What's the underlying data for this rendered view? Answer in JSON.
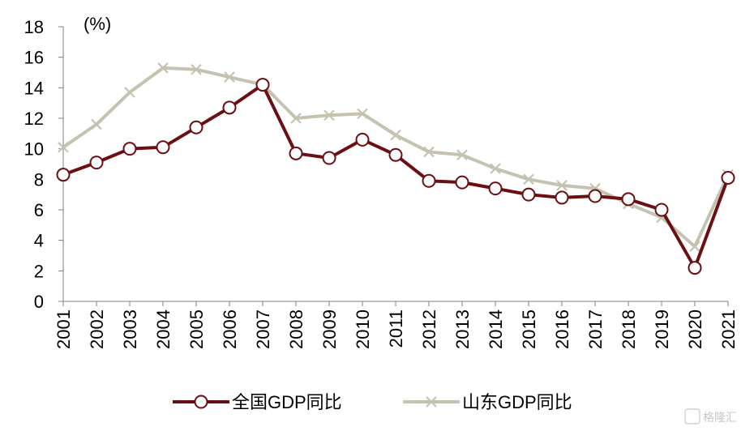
{
  "chart_data": {
    "type": "line",
    "title": "",
    "xlabel": "",
    "ylabel": "",
    "y_unit": "(%)",
    "ylim": [
      0,
      18
    ],
    "yticks": [
      0,
      2,
      4,
      6,
      8,
      10,
      12,
      14,
      16,
      18
    ],
    "grid": false,
    "legend_position": "bottom",
    "categories": [
      "2001",
      "2002",
      "2003",
      "2004",
      "2005",
      "2006",
      "2007",
      "2008",
      "2009",
      "2010",
      "2011",
      "2012",
      "2013",
      "2014",
      "2015",
      "2016",
      "2017",
      "2018",
      "2019",
      "2020",
      "2021"
    ],
    "series": [
      {
        "name": "全国GDP同比",
        "color": "#6b0f12",
        "marker": "open-circle",
        "values": [
          8.3,
          9.1,
          10.0,
          10.1,
          11.4,
          12.7,
          14.2,
          9.7,
          9.4,
          10.6,
          9.6,
          7.9,
          7.8,
          7.4,
          7.0,
          6.8,
          6.9,
          6.7,
          6.0,
          2.2,
          8.1
        ]
      },
      {
        "name": "山东GDP同比",
        "color": "#c5c2b1",
        "marker": "x",
        "values": [
          10.1,
          11.6,
          13.7,
          15.3,
          15.2,
          14.7,
          14.2,
          12.0,
          12.2,
          12.3,
          10.9,
          9.8,
          9.6,
          8.7,
          8.0,
          7.6,
          7.4,
          6.4,
          5.5,
          3.6,
          8.3
        ]
      }
    ]
  },
  "watermark": {
    "text": "格隆汇"
  }
}
